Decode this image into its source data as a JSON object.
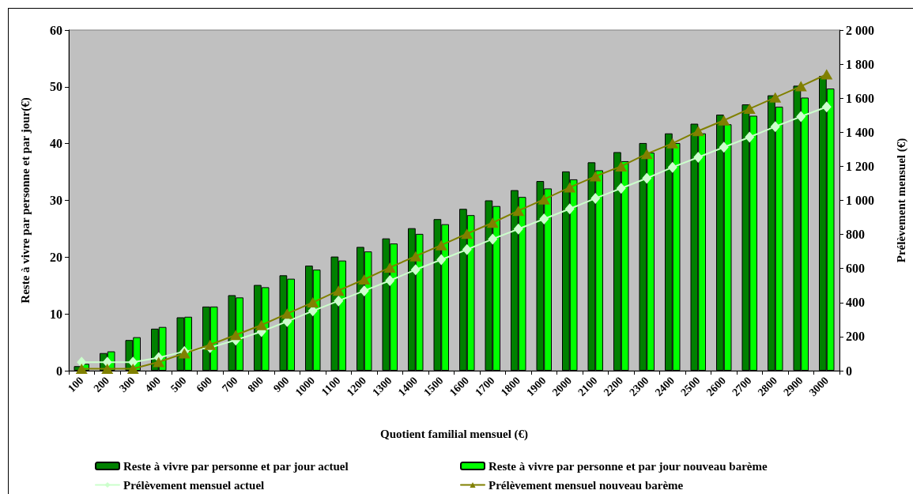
{
  "chart_data": {
    "type": "bar",
    "xlabel": "Quotient familial mensuel (€)",
    "ylabel": "Reste à vivre par personne et par jour(€)",
    "y2label": "Prélèvement mensuel (€)",
    "categories": [
      "100",
      "200",
      "300",
      "400",
      "500",
      "600",
      "700",
      "800",
      "900",
      "1000",
      "1100",
      "1200",
      "1300",
      "1400",
      "1500",
      "1600",
      "1700",
      "1800",
      "1900",
      "2000",
      "2100",
      "2200",
      "2300",
      "2400",
      "2500",
      "2600",
      "2700",
      "2800",
      "2900",
      "3000"
    ],
    "series": [
      {
        "name": "Reste à vivre par personne et par jour actuel",
        "color": "#008000",
        "values": [
          0.8,
          3.1,
          5.4,
          7.4,
          9.4,
          11.3,
          13.3,
          15.1,
          16.8,
          18.5,
          20.1,
          21.8,
          23.3,
          25.1,
          26.7,
          28.5,
          30.0,
          31.8,
          33.4,
          35.1,
          36.7,
          38.5,
          40.1,
          41.8,
          43.5,
          45.1,
          46.9,
          48.5,
          50.2,
          51.9
        ]
      },
      {
        "name": "Reste à vivre par personne et par jour nouveau barème",
        "color": "#00ff00",
        "values": [
          1.2,
          3.4,
          5.9,
          7.7,
          9.5,
          11.3,
          12.9,
          14.7,
          16.2,
          17.8,
          19.4,
          21.0,
          22.4,
          24.1,
          25.8,
          27.4,
          29.0,
          30.6,
          32.1,
          33.7,
          35.3,
          36.9,
          38.4,
          40.1,
          41.8,
          43.4,
          44.9,
          46.5,
          48.1,
          49.7
        ]
      },
      {
        "name": "Prélèvement mensuel actuel",
        "type": "line",
        "axis": "y2",
        "marker": "diamond",
        "color": "#ccffcc",
        "values": [
          50,
          50,
          50,
          77,
          113,
          136,
          180,
          230,
          289,
          351,
          410,
          469,
          529,
          593,
          652,
          711,
          773,
          832,
          891,
          950,
          1012,
          1071,
          1130,
          1194,
          1253,
          1312,
          1371,
          1433,
          1492,
          1549
        ]
      },
      {
        "name": "Prélèvement mensuel nouveau barème",
        "type": "line",
        "axis": "y2",
        "marker": "triangle",
        "color": "#808000",
        "values": [
          12,
          12,
          12,
          51,
          102,
          152,
          210,
          268,
          335,
          401,
          470,
          536,
          606,
          672,
          737,
          804,
          869,
          939,
          1006,
          1076,
          1141,
          1200,
          1273,
          1335,
          1407,
          1470,
          1538,
          1604,
          1670,
          1740
        ]
      }
    ],
    "ylim": [
      0,
      60
    ],
    "yticks": [
      0,
      10,
      20,
      30,
      40,
      50,
      60
    ],
    "y2lim": [
      0,
      2000
    ],
    "y2ticks": [
      0,
      200,
      400,
      600,
      800,
      {
        "value": 1000,
        "label": "1 000"
      },
      {
        "value": 1200,
        "label": "1 200"
      },
      {
        "value": 1400,
        "label": "1 400"
      },
      {
        "value": 1600,
        "label": "1 600"
      },
      {
        "value": 1800,
        "label": "1 800"
      },
      {
        "value": 2000,
        "label": "2 000"
      }
    ],
    "legend": "bottom"
  }
}
